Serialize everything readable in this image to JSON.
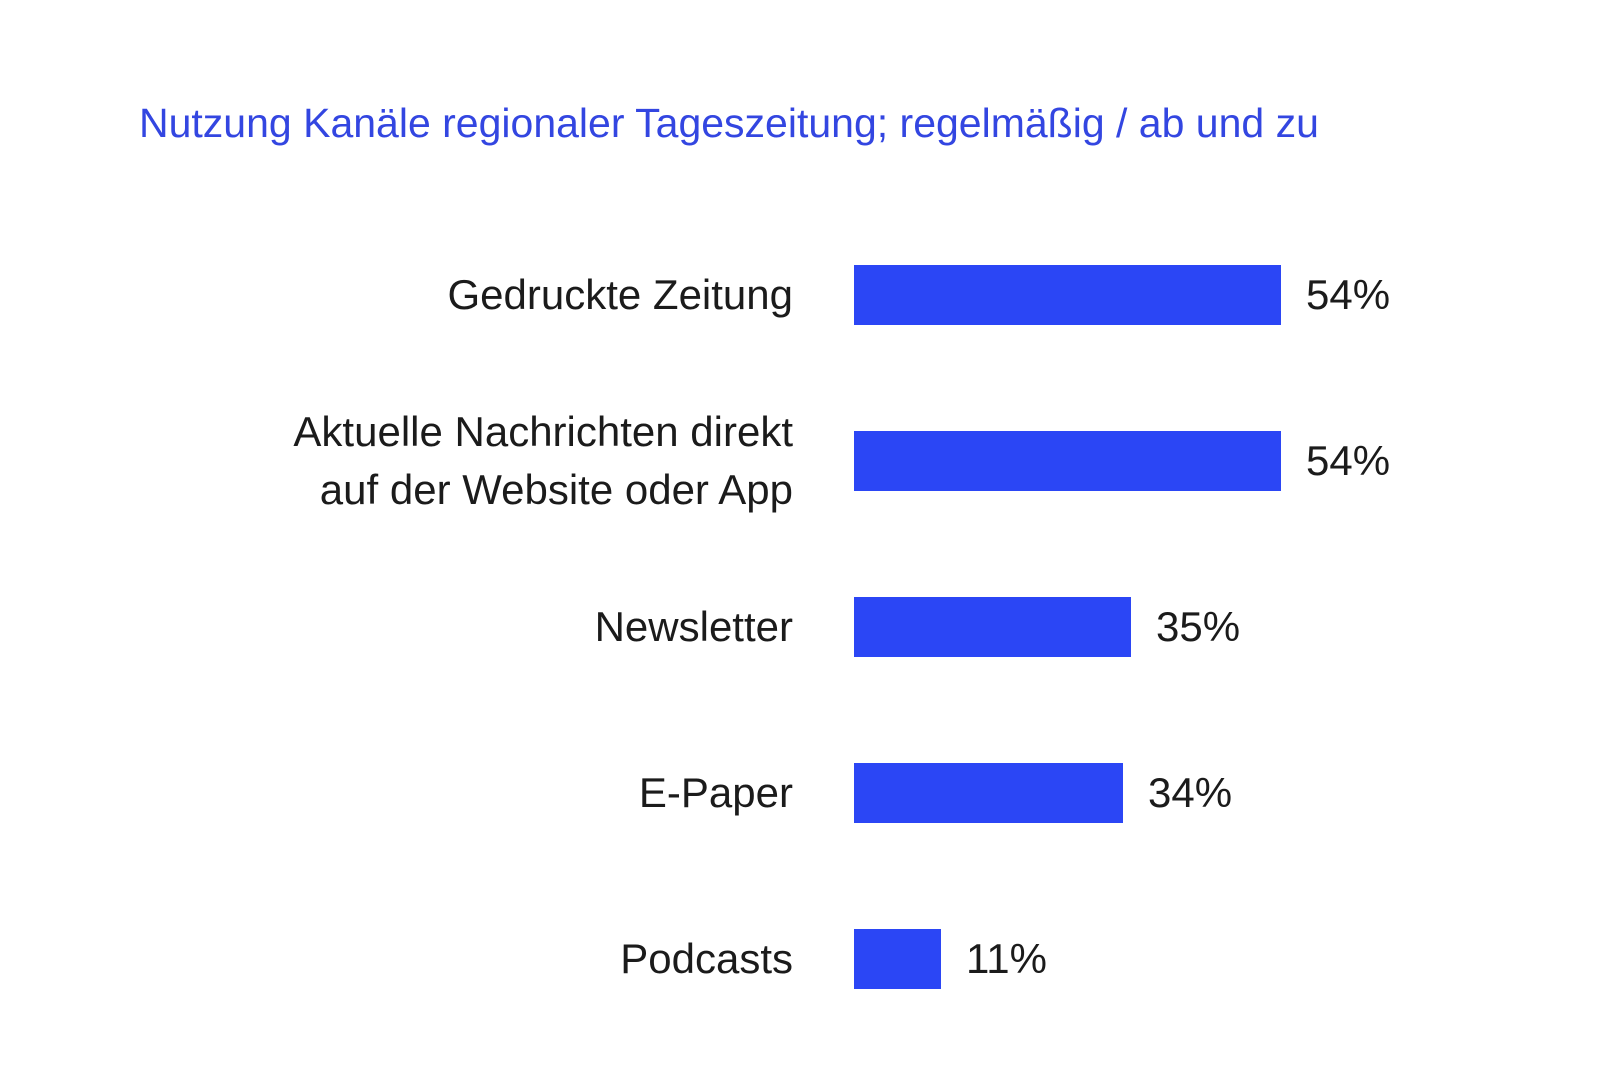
{
  "title": "Nutzung Kanäle regionaler Tageszeitung; regelmäßig / ab und zu",
  "colors": {
    "title": "#3346e1",
    "bar": "#2b46f5",
    "text": "#1b1b1b",
    "background": "#ffffff"
  },
  "chart_data": {
    "type": "bar",
    "orientation": "horizontal",
    "title": "Nutzung Kanäle regionaler Tageszeitung; regelmäßig / ab und zu",
    "categories": [
      "Gedruckte Zeitung",
      "Aktuelle Nachrichten direkt auf der Website oder App",
      "Newsletter",
      "E-Paper",
      "Podcasts"
    ],
    "category_lines": [
      [
        "Gedruckte Zeitung"
      ],
      [
        "Aktuelle Nachrichten direkt",
        "auf der Website oder App"
      ],
      [
        "Newsletter"
      ],
      [
        "E-Paper"
      ],
      [
        "Podcasts"
      ]
    ],
    "values": [
      54,
      54,
      35,
      34,
      11
    ],
    "value_labels": [
      "54%",
      "54%",
      "35%",
      "34%",
      "11%"
    ],
    "unit": "%",
    "xlabel": "",
    "ylabel": "",
    "xlim": [
      0,
      54
    ],
    "grid": false,
    "legend": false,
    "data_labels_position": "right-of-bar"
  }
}
